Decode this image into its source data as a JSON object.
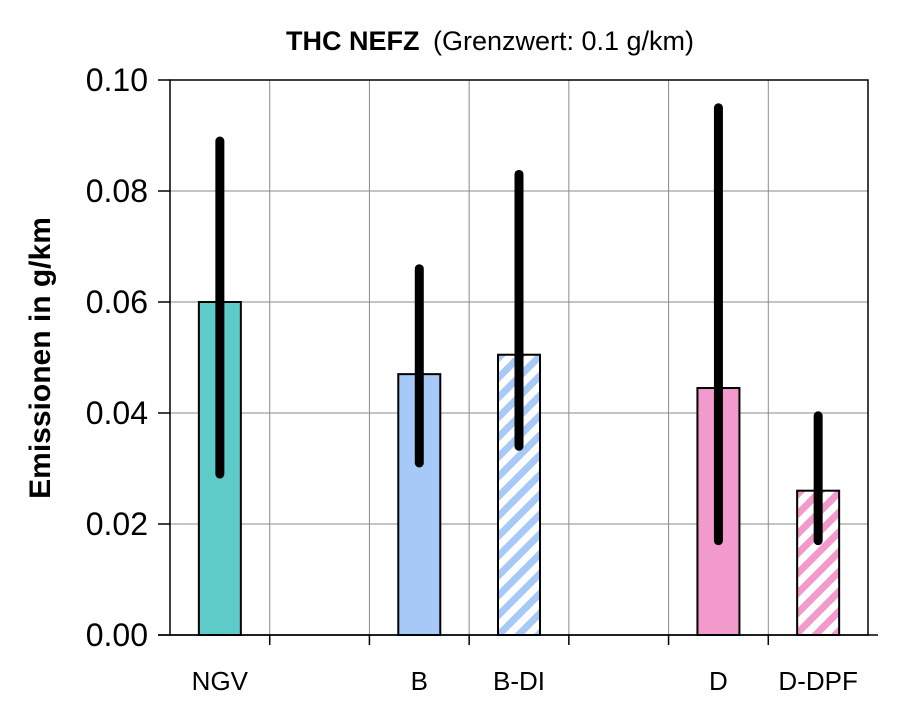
{
  "chart_data": {
    "type": "bar",
    "title_bold": "THC NEFZ",
    "title_rest": "(Grenzwert: 0.1 g/km)",
    "ylabel": "Emissionen in g/km",
    "xlabel": "",
    "ylim": [
      0,
      0.1
    ],
    "yticks": [
      "0.00",
      "0.02",
      "0.04",
      "0.06",
      "0.08",
      "0.10"
    ],
    "grid": true,
    "slots": [
      "NGV",
      "",
      "B",
      "B-DI",
      "",
      "D",
      "D-DPF"
    ],
    "bars": [
      {
        "category": "NGV",
        "value": 0.06,
        "err_low": 0.029,
        "err_high": 0.089,
        "color": "#5ecbc8",
        "pattern": "solid"
      },
      {
        "category": "B",
        "value": 0.047,
        "err_low": 0.031,
        "err_high": 0.066,
        "color": "#a7c9f7",
        "pattern": "solid"
      },
      {
        "category": "B-DI",
        "value": 0.0505,
        "err_low": 0.034,
        "err_high": 0.083,
        "color": "#a7c9f7",
        "pattern": "hatched"
      },
      {
        "category": "D",
        "value": 0.0445,
        "err_low": 0.017,
        "err_high": 0.095,
        "color": "#f29acb",
        "pattern": "solid"
      },
      {
        "category": "D-DPF",
        "value": 0.026,
        "err_low": 0.017,
        "err_high": 0.0395,
        "color": "#f29acb",
        "pattern": "hatched"
      }
    ]
  }
}
